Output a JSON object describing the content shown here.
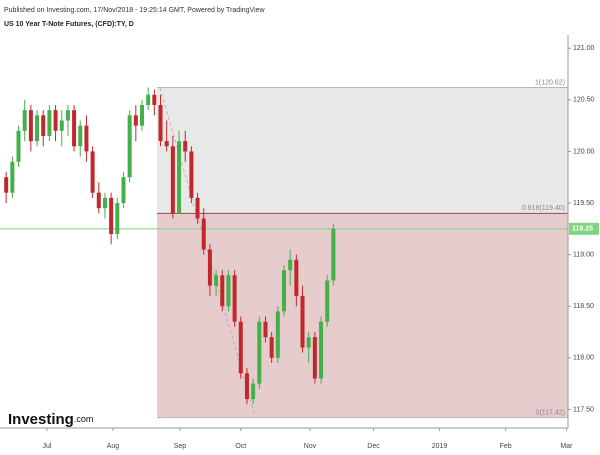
{
  "header": "Published on Investing.com, 17/Nov/2018 - 19:25:14 GMT, Powered by TradingView",
  "watermark": {
    "brand": "Investing",
    "suffix": ".com"
  },
  "chart_data": {
    "type": "candlestick",
    "title": "US 10 Year T-Note Futures, (CFD):TY, D",
    "x": [
      2,
      4,
      6,
      8,
      10,
      12,
      14,
      16,
      18,
      20,
      22,
      24,
      26,
      28,
      30,
      32,
      34,
      36,
      38,
      40,
      42,
      44,
      46,
      48,
      50,
      52,
      54,
      56,
      58,
      60,
      62,
      64,
      66,
      68,
      70,
      72,
      74,
      76,
      78,
      80,
      82,
      84,
      86,
      88,
      90,
      92,
      94,
      96,
      98,
      100,
      102,
      104,
      106,
      108
    ],
    "open": [
      119.75,
      119.6,
      119.9,
      120.2,
      120.4,
      120.1,
      120.35,
      120.15,
      120.4,
      120.2,
      120.3,
      120.4,
      120.05,
      120.25,
      120.0,
      119.6,
      119.45,
      119.55,
      119.2,
      119.5,
      119.75,
      120.35,
      120.25,
      120.45,
      120.55,
      120.45,
      120.1,
      120.05,
      119.4,
      120.1,
      120.0,
      119.55,
      119.35,
      119.05,
      118.7,
      118.8,
      118.5,
      118.8,
      118.35,
      117.85,
      117.6,
      117.75,
      118.35,
      118.2,
      118.0,
      118.45,
      118.85,
      118.95,
      118.6,
      118.1,
      118.2,
      117.8,
      118.35,
      118.75
    ],
    "high": [
      119.8,
      119.95,
      120.25,
      120.5,
      120.45,
      120.4,
      120.4,
      120.45,
      120.45,
      120.4,
      120.45,
      120.45,
      120.3,
      120.35,
      120.05,
      119.7,
      119.6,
      119.6,
      119.55,
      119.8,
      120.4,
      120.45,
      120.5,
      120.62,
      120.6,
      120.55,
      120.3,
      120.15,
      120.2,
      120.2,
      120.05,
      119.6,
      119.45,
      119.1,
      118.85,
      118.85,
      118.85,
      118.85,
      118.4,
      117.9,
      117.8,
      118.4,
      118.4,
      118.25,
      118.5,
      118.9,
      119.05,
      119.0,
      118.7,
      118.25,
      118.25,
      118.4,
      118.8,
      119.3
    ],
    "low": [
      119.5,
      119.55,
      119.85,
      120.1,
      120.0,
      120.05,
      120.05,
      120.1,
      120.1,
      120.05,
      120.15,
      120.0,
      119.95,
      119.9,
      119.55,
      119.4,
      119.35,
      119.1,
      119.15,
      119.45,
      119.7,
      120.1,
      120.2,
      120.4,
      120.35,
      120.05,
      120.0,
      119.35,
      119.4,
      119.9,
      119.5,
      119.3,
      119.0,
      118.6,
      118.6,
      118.45,
      118.45,
      118.3,
      117.8,
      117.55,
      117.55,
      117.7,
      118.15,
      117.95,
      117.95,
      118.4,
      118.7,
      118.5,
      118.05,
      117.95,
      117.75,
      117.75,
      118.3,
      118.7
    ],
    "close": [
      119.6,
      119.9,
      120.2,
      120.4,
      120.1,
      120.35,
      120.15,
      120.4,
      120.2,
      120.3,
      120.4,
      120.05,
      120.25,
      120.0,
      119.6,
      119.45,
      119.55,
      119.2,
      119.5,
      119.75,
      120.35,
      120.25,
      120.45,
      120.55,
      120.45,
      120.1,
      120.05,
      119.4,
      120.1,
      120.0,
      119.55,
      119.35,
      119.05,
      118.7,
      118.8,
      118.5,
      118.8,
      118.35,
      117.85,
      117.6,
      117.75,
      118.35,
      118.2,
      118.0,
      118.45,
      118.85,
      118.95,
      118.6,
      118.1,
      118.2,
      117.8,
      118.35,
      118.75,
      119.25
    ],
    "up_color": "#43b04a",
    "down_color": "#c0282d",
    "xlim": [
      0,
      184
    ],
    "xticks": [
      {
        "value": 15.2,
        "label": "Jul"
      },
      {
        "value": 36.6,
        "label": "Aug"
      },
      {
        "value": 58.3,
        "label": "Sep"
      },
      {
        "value": 78,
        "label": "Oct"
      },
      {
        "value": 100.4,
        "label": "Nov"
      },
      {
        "value": 121,
        "label": "Dec"
      },
      {
        "value": 142.4,
        "label": "2019"
      },
      {
        "value": 163.8,
        "label": "Feb"
      },
      {
        "value": 183.5,
        "label": "Mar"
      }
    ],
    "ylim": [
      117.32,
      121.08
    ],
    "yticks": [
      {
        "value": 117.5,
        "label": "117.50"
      },
      {
        "value": 118,
        "label": "118.00"
      },
      {
        "value": 118.5,
        "label": "118.50"
      },
      {
        "value": 119,
        "label": "119.00"
      },
      {
        "value": 119.5,
        "label": "119.50"
      },
      {
        "value": 120,
        "label": "120.00"
      },
      {
        "value": 120.5,
        "label": "120.50"
      },
      {
        "value": 121,
        "label": "121.00"
      }
    ],
    "fib_levels": [
      {
        "value": 120.62,
        "label": "1(120.62)"
      },
      {
        "value": 119.4,
        "label": "0.618(119.40)"
      },
      {
        "value": 117.42,
        "label": "0(117.42)"
      }
    ],
    "last_price": 119.25,
    "last_price_color": "#7ed67e"
  }
}
